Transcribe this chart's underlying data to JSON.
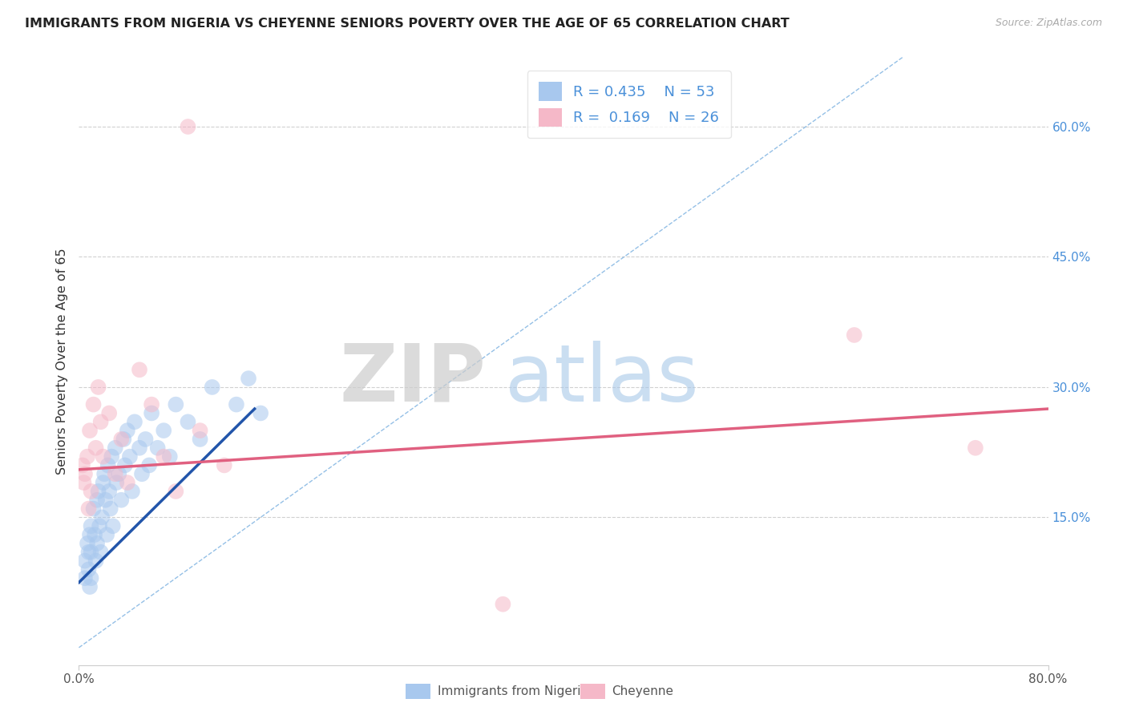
{
  "title": "IMMIGRANTS FROM NIGERIA VS CHEYENNE SENIORS POVERTY OVER THE AGE OF 65 CORRELATION CHART",
  "source": "Source: ZipAtlas.com",
  "ylabel": "Seniors Poverty Over the Age of 65",
  "legend_labels": [
    "Immigrants from Nigeria",
    "Cheyenne"
  ],
  "legend_r": [
    0.435,
    0.169
  ],
  "legend_n": [
    53,
    26
  ],
  "xlim": [
    0.0,
    0.8
  ],
  "ylim": [
    -0.02,
    0.68
  ],
  "y_ticks_right": [
    0.0,
    0.15,
    0.3,
    0.45,
    0.6
  ],
  "y_tick_labels_right": [
    "",
    "15.0%",
    "30.0%",
    "45.0%",
    "60.0%"
  ],
  "color_blue": "#a8c8ee",
  "color_pink": "#f5b8c8",
  "color_blue_line": "#2255aa",
  "color_pink_line": "#e06080",
  "color_ref_line": "#7ab0e0",
  "watermark_zip": "ZIP",
  "watermark_atlas": "atlas",
  "blue_scatter_x": [
    0.005,
    0.005,
    0.007,
    0.008,
    0.008,
    0.009,
    0.009,
    0.01,
    0.01,
    0.01,
    0.012,
    0.013,
    0.014,
    0.015,
    0.015,
    0.016,
    0.017,
    0.018,
    0.019,
    0.02,
    0.021,
    0.022,
    0.023,
    0.024,
    0.025,
    0.026,
    0.027,
    0.028,
    0.03,
    0.031,
    0.033,
    0.035,
    0.037,
    0.038,
    0.04,
    0.042,
    0.044,
    0.046,
    0.05,
    0.052,
    0.055,
    0.058,
    0.06,
    0.065,
    0.07,
    0.075,
    0.08,
    0.09,
    0.1,
    0.11,
    0.13,
    0.14,
    0.15
  ],
  "blue_scatter_y": [
    0.1,
    0.08,
    0.12,
    0.11,
    0.09,
    0.13,
    0.07,
    0.14,
    0.11,
    0.08,
    0.16,
    0.13,
    0.1,
    0.17,
    0.12,
    0.18,
    0.14,
    0.11,
    0.15,
    0.19,
    0.2,
    0.17,
    0.13,
    0.21,
    0.18,
    0.16,
    0.22,
    0.14,
    0.23,
    0.19,
    0.2,
    0.17,
    0.24,
    0.21,
    0.25,
    0.22,
    0.18,
    0.26,
    0.23,
    0.2,
    0.24,
    0.21,
    0.27,
    0.23,
    0.25,
    0.22,
    0.28,
    0.26,
    0.24,
    0.3,
    0.28,
    0.31,
    0.27
  ],
  "pink_scatter_x": [
    0.003,
    0.004,
    0.005,
    0.007,
    0.008,
    0.009,
    0.01,
    0.012,
    0.014,
    0.016,
    0.018,
    0.02,
    0.025,
    0.03,
    0.035,
    0.04,
    0.05,
    0.06,
    0.07,
    0.08,
    0.09,
    0.1,
    0.12,
    0.35,
    0.64,
    0.74
  ],
  "pink_scatter_y": [
    0.21,
    0.19,
    0.2,
    0.22,
    0.16,
    0.25,
    0.18,
    0.28,
    0.23,
    0.3,
    0.26,
    0.22,
    0.27,
    0.2,
    0.24,
    0.19,
    0.32,
    0.28,
    0.22,
    0.18,
    0.6,
    0.25,
    0.21,
    0.05,
    0.36,
    0.23
  ],
  "blue_line_x": [
    0.0,
    0.145
  ],
  "blue_line_y": [
    0.075,
    0.275
  ],
  "pink_line_x": [
    0.0,
    0.8
  ],
  "pink_line_y": [
    0.205,
    0.275
  ],
  "ref_line_x": [
    0.0,
    0.68
  ],
  "ref_line_y": [
    0.0,
    0.68
  ]
}
